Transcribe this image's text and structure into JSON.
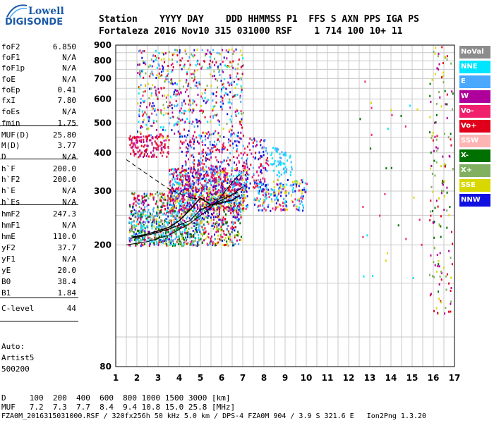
{
  "logo": {
    "line1": "Lowell",
    "line2": "DIGISONDE"
  },
  "header": {
    "labels": "Station    YYYY DAY    DDD HHMMSS P1  FFS S AXN PPS IGA PS",
    "values": "Fortaleza 2016 Nov10 315 031000 RSF    1 714 100 10+ 11"
  },
  "params": [
    {
      "name": "foF2",
      "value": "6.850"
    },
    {
      "name": "foF1",
      "value": "N/A"
    },
    {
      "name": "foF1p",
      "value": "N/A"
    },
    {
      "name": "foE",
      "value": "N/A"
    },
    {
      "name": "foEp",
      "value": "0.41"
    },
    {
      "name": "fxI",
      "value": "7.80"
    },
    {
      "name": "foEs",
      "value": "N/A"
    },
    {
      "name": "fmin",
      "value": "1.75"
    },
    {
      "name": "MUF(D)",
      "value": "25.80"
    },
    {
      "name": "M(D)",
      "value": "3.77"
    },
    {
      "name": "D",
      "value": "N/A"
    },
    {
      "name": "h`F",
      "value": "200.0"
    },
    {
      "name": "h`F2",
      "value": "200.0"
    },
    {
      "name": "h`E",
      "value": "N/A"
    },
    {
      "name": "h`Es",
      "value": "N/A"
    },
    {
      "name": "hmF2",
      "value": "247.3"
    },
    {
      "name": "hmF1",
      "value": "N/A"
    },
    {
      "name": "hmE",
      "value": "110.0"
    },
    {
      "name": "yF2",
      "value": "37.7"
    },
    {
      "name": "yF1",
      "value": "N/A"
    },
    {
      "name": "yE",
      "value": "20.0"
    },
    {
      "name": "B0",
      "value": "38.4"
    },
    {
      "name": "B1",
      "value": "1.84"
    },
    {
      "name": "C-level",
      "value": "44"
    }
  ],
  "autoscaling": {
    "line1": "Auto:",
    "line2": "Artist5",
    "line3": "500200"
  },
  "legend": [
    {
      "label": "NoVal",
      "color": "#8c8c8c"
    },
    {
      "label": "NNE",
      "color": "#00e5ff"
    },
    {
      "label": "E",
      "color": "#4aa8ff"
    },
    {
      "label": "W",
      "color": "#b0009c"
    },
    {
      "label": "Vo-",
      "color": "#f0206c"
    },
    {
      "label": "Vo+",
      "color": "#e0001c"
    },
    {
      "label": "SSW",
      "color": "#ffb4b4"
    },
    {
      "label": "X-",
      "color": "#007000"
    },
    {
      "label": "X+",
      "color": "#80b060"
    },
    {
      "label": "SSE",
      "color": "#d8d800"
    },
    {
      "label": "NNW",
      "color": "#1010e0"
    }
  ],
  "chart_data": {
    "type": "scatter",
    "title": "",
    "xlabel": "",
    "ylabel": "",
    "xlim": [
      1,
      17
    ],
    "ylim": [
      80,
      900
    ],
    "y_scale": "log",
    "x_ticks": [
      1,
      2,
      3,
      4,
      5,
      6,
      7,
      8,
      9,
      10,
      11,
      12,
      13,
      14,
      15,
      16,
      17
    ],
    "y_ticks": [
      80,
      200,
      300,
      400,
      500,
      600,
      700,
      800,
      900
    ],
    "grid": true,
    "legend_position": "right",
    "profile_line": {
      "x": [
        1.5,
        2.5,
        3.5,
        4.5,
        5.5,
        6.0,
        6.5,
        6.85
      ],
      "y": [
        200,
        205,
        215,
        235,
        265,
        290,
        320,
        340
      ]
    },
    "extraordinary_trace": {
      "x": [
        1.7,
        2.5,
        3.5,
        4.5,
        5.0,
        5.5,
        6.0,
        6.6,
        7.0
      ],
      "y": [
        210,
        215,
        225,
        240,
        260,
        270,
        280,
        295,
        310
      ]
    },
    "ordinary_trace": {
      "x": [
        1.8,
        2.5,
        3.5,
        4.0,
        4.5,
        5.0,
        5.5,
        6.0,
        6.5,
        6.85
      ],
      "y": [
        212,
        217,
        228,
        240,
        260,
        285,
        270,
        275,
        280,
        290
      ]
    }
  },
  "footer": {
    "d_row": "D     100  200  400  600  800 1000 1500 3000 [km]",
    "muf_row": "MUF   7.2  7.3  7.7  8.4  9.4 10.8 15.0 25.8 [MHz]",
    "file_row": "FZA0M_2016315031000.RSF / 320fx256h 50 kHz 5.0 km / DPS-4 FZA0M 904 / 3.9 S 321.6 E   Ion2Png 1.3.20"
  }
}
